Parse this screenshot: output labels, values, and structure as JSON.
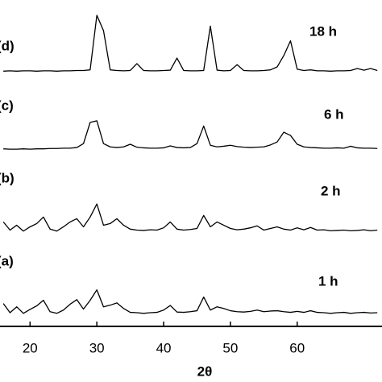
{
  "chart_data": {
    "type": "line",
    "x_label": "2θ",
    "x": [
      16,
      17,
      18,
      19,
      20,
      21,
      22,
      23,
      24,
      25,
      26,
      27,
      28,
      29,
      30,
      31,
      32,
      33,
      34,
      35,
      36,
      37,
      38,
      39,
      40,
      41,
      42,
      43,
      44,
      45,
      46,
      47,
      48,
      49,
      50,
      51,
      52,
      53,
      54,
      55,
      56,
      57,
      58,
      59,
      60,
      61,
      62,
      63,
      64,
      65,
      66,
      67,
      68,
      69,
      70,
      71,
      72
    ],
    "xlim": [
      15.5,
      72.7
    ],
    "xticks": [
      20,
      30,
      40,
      50,
      60
    ],
    "ylim": [
      0,
      100
    ],
    "color": "#000000",
    "series": [
      {
        "label": "(a)",
        "name": "1 h",
        "color": "#000000",
        "values": [
          7.0,
          4.2,
          6.0,
          4.0,
          5.2,
          6.3,
          8.0,
          4.5,
          4.0,
          5.0,
          6.8,
          8.2,
          5.3,
          8.0,
          11.2,
          6.0,
          6.5,
          7.2,
          5.5,
          4.3,
          4.2,
          4.0,
          4.2,
          4.3,
          5.0,
          6.4,
          4.4,
          4.3,
          4.5,
          4.8,
          9.0,
          5.0,
          6.0,
          5.5,
          4.8,
          4.5,
          4.4,
          4.6,
          5.0,
          4.5,
          4.7,
          4.8,
          4.5,
          4.3,
          4.6,
          4.3,
          4.8,
          4.3,
          4.2,
          4.0,
          4.2,
          4.3,
          4.0,
          4.2,
          4.3,
          4.1,
          4.2
        ]
      },
      {
        "label": "(b)",
        "name": "2 h",
        "color": "#000000",
        "values": [
          32.0,
          29.5,
          31.0,
          29.2,
          30.5,
          31.5,
          33.5,
          29.8,
          29.2,
          30.5,
          32.0,
          33.0,
          30.5,
          33.5,
          37.5,
          31.0,
          31.5,
          33.0,
          31.0,
          29.8,
          29.5,
          29.4,
          29.6,
          29.5,
          30.2,
          32.0,
          29.8,
          29.5,
          29.7,
          30.0,
          34.0,
          30.5,
          32.0,
          31.0,
          30.0,
          29.6,
          29.8,
          30.2,
          30.8,
          29.5,
          30.0,
          30.5,
          29.8,
          29.5,
          30.2,
          29.6,
          30.3,
          29.5,
          29.6,
          29.3,
          29.4,
          29.5,
          29.3,
          29.4,
          29.6,
          29.3,
          29.5
        ]
      },
      {
        "label": "(c)",
        "name": "6 h",
        "color": "#000000",
        "values": [
          54.4,
          54.3,
          54.3,
          54.4,
          54.3,
          54.4,
          54.4,
          54.5,
          54.5,
          54.6,
          54.6,
          54.8,
          56.0,
          62.5,
          63.0,
          56.0,
          55.0,
          54.8,
          55.0,
          55.8,
          54.9,
          54.7,
          54.6,
          54.6,
          54.7,
          55.3,
          54.8,
          54.7,
          54.8,
          56.0,
          61.4,
          55.5,
          55.0,
          55.2,
          55.5,
          55.1,
          54.9,
          54.8,
          54.9,
          55.0,
          55.6,
          56.5,
          59.5,
          58.5,
          55.8,
          55.0,
          54.8,
          54.7,
          54.6,
          54.6,
          54.7,
          54.6,
          55.2,
          54.7,
          54.6,
          54.6,
          54.5
        ]
      },
      {
        "label": "(d)",
        "name": "18 h",
        "color": "#000000",
        "values": [
          78.2,
          78.3,
          78.2,
          78.3,
          78.3,
          78.2,
          78.3,
          78.3,
          78.2,
          78.3,
          78.3,
          78.4,
          78.4,
          78.6,
          95.3,
          90.6,
          78.6,
          78.4,
          78.3,
          78.4,
          80.5,
          78.4,
          78.3,
          78.3,
          78.4,
          78.5,
          82.2,
          78.4,
          78.3,
          78.3,
          78.4,
          92.0,
          78.5,
          78.3,
          78.4,
          80.2,
          78.4,
          78.3,
          78.3,
          78.4,
          78.6,
          79.5,
          83.0,
          87.5,
          78.8,
          78.4,
          78.6,
          78.3,
          78.3,
          78.2,
          78.3,
          78.3,
          78.4,
          79.0,
          78.5,
          79.0,
          78.4
        ]
      }
    ]
  }
}
